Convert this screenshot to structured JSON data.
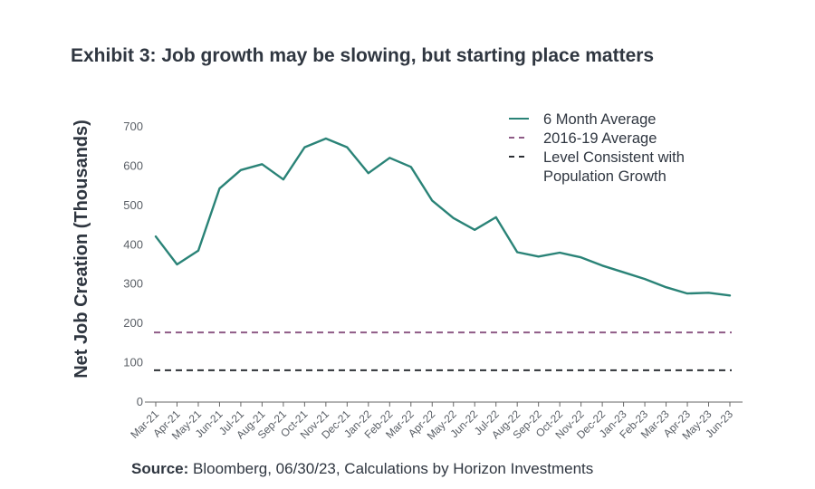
{
  "title": "Exhibit 3: Job growth may be slowing, but starting place matters",
  "source": {
    "label": "Source:",
    "text": " Bloomberg, 06/30/23, Calculations by Horizon Investments"
  },
  "chart_data": {
    "type": "line",
    "ylabel": "Net Job Creation (Thousands)",
    "xlabel": "",
    "ylim": [
      0,
      700
    ],
    "yticks": [
      0,
      100,
      200,
      300,
      400,
      500,
      600,
      700
    ],
    "categories": [
      "Mar-21",
      "Apr-21",
      "May-21",
      "Jun-21",
      "Jul-21",
      "Aug-21",
      "Sep-21",
      "Oct-21",
      "Nov-21",
      "Dec-21",
      "Jan-22",
      "Feb-22",
      "Mar-22",
      "Apr-22",
      "May-22",
      "Jun-22",
      "Jul-22",
      "Aug-22",
      "Sep-22",
      "Oct-22",
      "Nov-22",
      "Dec-22",
      "Jan-23",
      "Feb-23",
      "Mar-23",
      "Apr-23",
      "May-23",
      "Jun-23"
    ],
    "series": [
      {
        "name": "6 Month Average",
        "style": "solid",
        "color": "#2a8377",
        "values": [
          421,
          350,
          385,
          543,
          590,
          605,
          566,
          648,
          670,
          648,
          582,
          621,
          598,
          512,
          468,
          438,
          470,
          381,
          370,
          380,
          368,
          347,
          330,
          313,
          292,
          276,
          278,
          271
        ]
      },
      {
        "name": "2016-19 Average",
        "style": "dashed",
        "color": "#8e5b86",
        "constant": 177
      },
      {
        "name": "Level Consistent with Population Growth",
        "style": "dashed",
        "color": "#2d3035",
        "constant": 81
      }
    ],
    "legend": {
      "position": "top-right",
      "lines": [
        [
          "6 Month Average"
        ],
        [
          "2016-19 Average"
        ],
        [
          "Level Consistent with",
          "Population Growth"
        ]
      ]
    },
    "grid": false
  }
}
